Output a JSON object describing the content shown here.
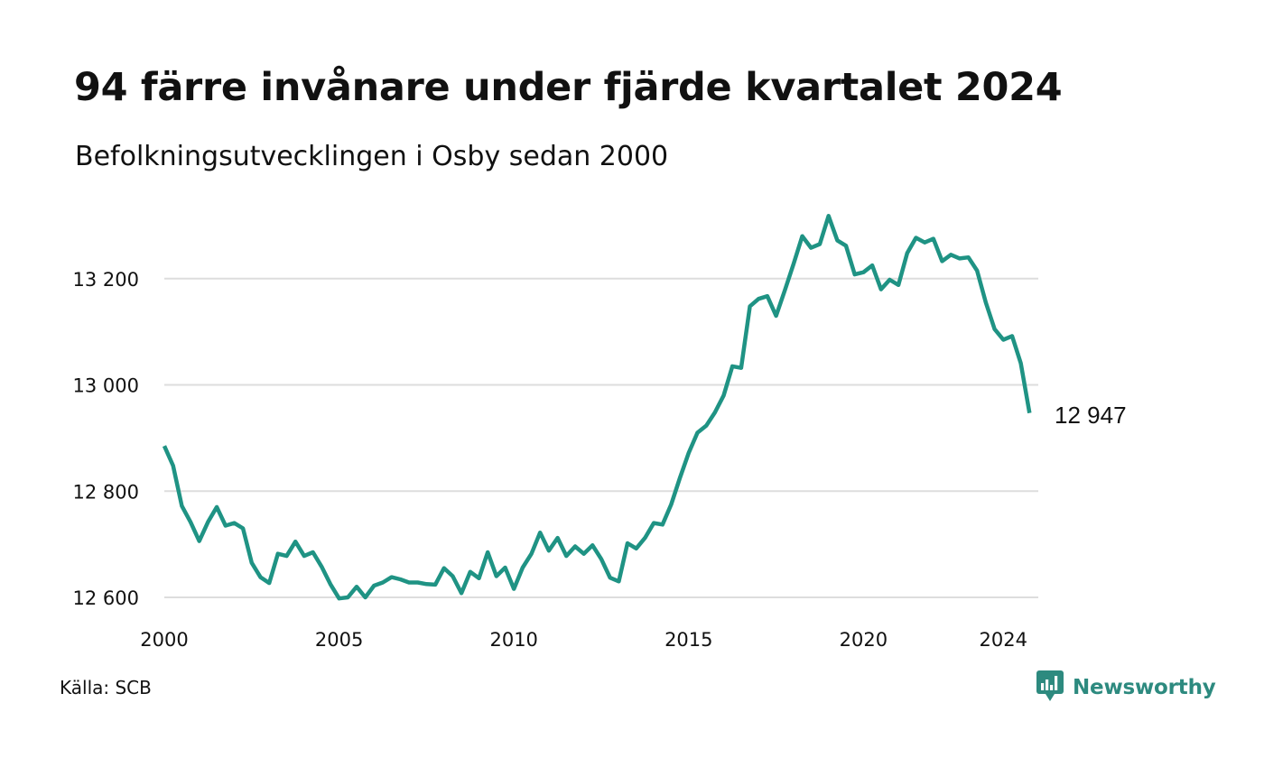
{
  "title": "94 färre invånare under fjärde kvartalet 2024",
  "subtitle": "Befolkningsutvecklingen i Osby sedan 2000",
  "source": "Källa: SCB",
  "brand": {
    "name": "Newsworthy",
    "icon": "newsworthy-logo-icon"
  },
  "colors": {
    "line": "#1f9384",
    "grid": "#dddddd",
    "text": "#111111",
    "brand": "#2d8a7f"
  },
  "chart_data": {
    "type": "line",
    "title": "",
    "xlabel": "",
    "ylabel": "",
    "x_ticks": [
      "2000",
      "2005",
      "2010",
      "2015",
      "2020",
      "2024"
    ],
    "y_ticks": [
      "12 600",
      "12 800",
      "13 000",
      "13 200"
    ],
    "ylim": [
      12590,
      13330
    ],
    "xlim": [
      2000,
      2025
    ],
    "grid": "horizontal",
    "end_label": "12 947",
    "series": [
      {
        "name": "",
        "points": [
          [
            "2000Q1",
            12885
          ],
          [
            "2000Q2",
            12848
          ],
          [
            "2000Q3",
            12772
          ],
          [
            "2000Q4",
            12742
          ],
          [
            "2001Q1",
            12706
          ],
          [
            "2001Q2",
            12742
          ],
          [
            "2001Q3",
            12770
          ],
          [
            "2001Q4",
            12735
          ],
          [
            "2002Q1",
            12740
          ],
          [
            "2002Q2",
            12730
          ],
          [
            "2002Q3",
            12665
          ],
          [
            "2002Q4",
            12638
          ],
          [
            "2003Q1",
            12627
          ],
          [
            "2003Q2",
            12682
          ],
          [
            "2003Q3",
            12678
          ],
          [
            "2003Q4",
            12705
          ],
          [
            "2004Q1",
            12678
          ],
          [
            "2004Q2",
            12685
          ],
          [
            "2004Q3",
            12658
          ],
          [
            "2004Q4",
            12625
          ],
          [
            "2005Q1",
            12598
          ],
          [
            "2005Q2",
            12600
          ],
          [
            "2005Q3",
            12620
          ],
          [
            "2005Q4",
            12600
          ],
          [
            "2006Q1",
            12622
          ],
          [
            "2006Q2",
            12628
          ],
          [
            "2006Q3",
            12638
          ],
          [
            "2006Q4",
            12634
          ],
          [
            "2007Q1",
            12628
          ],
          [
            "2007Q2",
            12628
          ],
          [
            "2007Q3",
            12625
          ],
          [
            "2007Q4",
            12624
          ],
          [
            "2008Q1",
            12655
          ],
          [
            "2008Q2",
            12640
          ],
          [
            "2008Q3",
            12608
          ],
          [
            "2008Q4",
            12648
          ],
          [
            "2009Q1",
            12636
          ],
          [
            "2009Q2",
            12685
          ],
          [
            "2009Q3",
            12640
          ],
          [
            "2009Q4",
            12656
          ],
          [
            "2010Q1",
            12616
          ],
          [
            "2010Q2",
            12656
          ],
          [
            "2010Q3",
            12682
          ],
          [
            "2010Q4",
            12722
          ],
          [
            "2011Q1",
            12688
          ],
          [
            "2011Q2",
            12712
          ],
          [
            "2011Q3",
            12678
          ],
          [
            "2011Q4",
            12696
          ],
          [
            "2012Q1",
            12682
          ],
          [
            "2012Q2",
            12698
          ],
          [
            "2012Q3",
            12672
          ],
          [
            "2012Q4",
            12637
          ],
          [
            "2013Q1",
            12630
          ],
          [
            "2013Q2",
            12702
          ],
          [
            "2013Q3",
            12692
          ],
          [
            "2013Q4",
            12712
          ],
          [
            "2014Q1",
            12740
          ],
          [
            "2014Q2",
            12737
          ],
          [
            "2014Q3",
            12775
          ],
          [
            "2014Q4",
            12825
          ],
          [
            "2015Q1",
            12872
          ],
          [
            "2015Q2",
            12910
          ],
          [
            "2015Q3",
            12923
          ],
          [
            "2015Q4",
            12948
          ],
          [
            "2016Q1",
            12980
          ],
          [
            "2016Q2",
            13035
          ],
          [
            "2016Q3",
            13032
          ],
          [
            "2016Q4",
            13148
          ],
          [
            "2017Q1",
            13162
          ],
          [
            "2017Q2",
            13167
          ],
          [
            "2017Q3",
            13130
          ],
          [
            "2017Q4",
            13178
          ],
          [
            "2018Q1",
            13228
          ],
          [
            "2018Q2",
            13280
          ],
          [
            "2018Q3",
            13258
          ],
          [
            "2018Q4",
            13265
          ],
          [
            "2019Q1",
            13318
          ],
          [
            "2019Q2",
            13272
          ],
          [
            "2019Q3",
            13262
          ],
          [
            "2019Q4",
            13208
          ],
          [
            "2020Q1",
            13212
          ],
          [
            "2020Q2",
            13225
          ],
          [
            "2020Q3",
            13180
          ],
          [
            "2020Q4",
            13198
          ],
          [
            "2021Q1",
            13188
          ],
          [
            "2021Q2",
            13248
          ],
          [
            "2021Q3",
            13277
          ],
          [
            "2021Q4",
            13268
          ],
          [
            "2022Q1",
            13275
          ],
          [
            "2022Q2",
            13233
          ],
          [
            "2022Q3",
            13245
          ],
          [
            "2022Q4",
            13238
          ],
          [
            "2023Q1",
            13240
          ],
          [
            "2023Q2",
            13215
          ],
          [
            "2023Q3",
            13155
          ],
          [
            "2023Q4",
            13105
          ],
          [
            "2024Q1",
            13085
          ],
          [
            "2024Q2",
            13092
          ],
          [
            "2024Q3",
            13041
          ],
          [
            "2024Q4",
            12947
          ]
        ]
      }
    ]
  }
}
